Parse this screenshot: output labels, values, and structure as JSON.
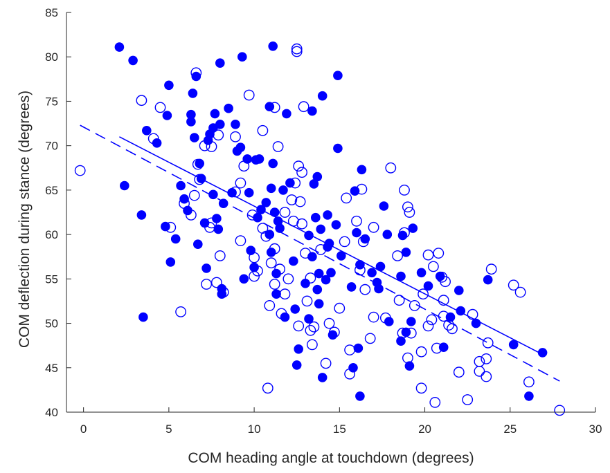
{
  "chart_data": {
    "type": "scatter",
    "title": "",
    "xlabel": "COM heading angle at touchdown (degrees)",
    "ylabel": "COM deflection during stance (degrees)",
    "xlim": [
      -1,
      30
    ],
    "ylim": [
      40,
      85
    ],
    "xticks": [
      0,
      5,
      10,
      15,
      20,
      25,
      30
    ],
    "yticks": [
      40,
      45,
      50,
      55,
      60,
      65,
      70,
      75,
      80,
      85
    ],
    "grid": false,
    "legend": "none",
    "colors": {
      "marker": "#0000ff",
      "axis": "#262626"
    },
    "series": [
      {
        "marker": "filled-circle",
        "points": [
          [
            2.1,
            81.1
          ],
          [
            2.9,
            79.6
          ],
          [
            2.4,
            65.5
          ],
          [
            3.4,
            62.2
          ],
          [
            3.5,
            50.7
          ],
          [
            3.7,
            71.7
          ],
          [
            4.3,
            70.3
          ],
          [
            4.8,
            60.9
          ],
          [
            4.9,
            73.4
          ],
          [
            5.0,
            76.8
          ],
          [
            5.1,
            56.9
          ],
          [
            5.4,
            59.5
          ],
          [
            5.7,
            65.5
          ],
          [
            5.9,
            64.0
          ],
          [
            6.1,
            62.7
          ],
          [
            6.3,
            73.5
          ],
          [
            6.3,
            72.7
          ],
          [
            6.4,
            75.9
          ],
          [
            6.6,
            77.8
          ],
          [
            6.5,
            70.9
          ],
          [
            6.7,
            58.9
          ],
          [
            6.8,
            68.0
          ],
          [
            6.9,
            66.3
          ],
          [
            7.1,
            61.3
          ],
          [
            7.2,
            56.2
          ],
          [
            7.3,
            70.6
          ],
          [
            7.4,
            71.3
          ],
          [
            7.6,
            72.0
          ],
          [
            7.7,
            73.6
          ],
          [
            7.6,
            64.5
          ],
          [
            7.8,
            61.8
          ],
          [
            7.9,
            60.6
          ],
          [
            8.0,
            79.3
          ],
          [
            8.0,
            72.4
          ],
          [
            8.1,
            53.9
          ],
          [
            8.1,
            53.3
          ],
          [
            8.2,
            63.5
          ],
          [
            8.5,
            74.2
          ],
          [
            8.7,
            64.7
          ],
          [
            8.9,
            72.4
          ],
          [
            9.0,
            69.4
          ],
          [
            9.2,
            69.8
          ],
          [
            9.3,
            80.0
          ],
          [
            9.4,
            55.0
          ],
          [
            9.6,
            68.5
          ],
          [
            9.7,
            64.7
          ],
          [
            9.8,
            58.2
          ],
          [
            10.0,
            56.3
          ],
          [
            10.1,
            68.4
          ],
          [
            10.2,
            61.9
          ],
          [
            10.3,
            68.5
          ],
          [
            10.4,
            62.8
          ],
          [
            10.7,
            63.6
          ],
          [
            10.9,
            60.0
          ],
          [
            10.9,
            74.4
          ],
          [
            11.0,
            58.0
          ],
          [
            11.0,
            65.2
          ],
          [
            11.1,
            81.2
          ],
          [
            11.1,
            68.0
          ],
          [
            11.2,
            62.5
          ],
          [
            11.3,
            53.3
          ],
          [
            11.3,
            55.6
          ],
          [
            11.4,
            61.5
          ],
          [
            11.5,
            60.7
          ],
          [
            11.7,
            65.0
          ],
          [
            11.8,
            50.7
          ],
          [
            11.9,
            73.6
          ],
          [
            12.1,
            65.8
          ],
          [
            12.3,
            57.0
          ],
          [
            12.4,
            51.6
          ],
          [
            12.5,
            45.3
          ],
          [
            12.6,
            47.1
          ],
          [
            13.0,
            54.5
          ],
          [
            13.2,
            50.5
          ],
          [
            13.2,
            59.9
          ],
          [
            13.4,
            57.5
          ],
          [
            13.4,
            73.9
          ],
          [
            13.5,
            65.7
          ],
          [
            13.6,
            61.9
          ],
          [
            13.7,
            66.5
          ],
          [
            13.7,
            53.8
          ],
          [
            13.8,
            52.2
          ],
          [
            13.8,
            55.6
          ],
          [
            13.9,
            60.6
          ],
          [
            14.0,
            43.9
          ],
          [
            14.0,
            75.6
          ],
          [
            14.2,
            54.9
          ],
          [
            14.3,
            58.6
          ],
          [
            14.3,
            62.2
          ],
          [
            14.4,
            59.0
          ],
          [
            14.5,
            55.7
          ],
          [
            14.6,
            48.7
          ],
          [
            14.8,
            61.1
          ],
          [
            14.9,
            77.9
          ],
          [
            14.9,
            69.7
          ],
          [
            15.1,
            57.6
          ],
          [
            15.7,
            54.1
          ],
          [
            15.8,
            45.0
          ],
          [
            15.9,
            64.9
          ],
          [
            16.0,
            60.2
          ],
          [
            16.1,
            47.2
          ],
          [
            16.2,
            41.8
          ],
          [
            16.2,
            56.6
          ],
          [
            16.3,
            67.3
          ],
          [
            16.5,
            59.5
          ],
          [
            16.9,
            55.7
          ],
          [
            17.2,
            54.6
          ],
          [
            17.3,
            53.9
          ],
          [
            17.4,
            56.4
          ],
          [
            17.6,
            63.2
          ],
          [
            17.8,
            60.0
          ],
          [
            17.9,
            50.2
          ],
          [
            18.6,
            48.0
          ],
          [
            18.6,
            55.3
          ],
          [
            18.7,
            59.9
          ],
          [
            18.9,
            49.0
          ],
          [
            18.9,
            58.0
          ],
          [
            19.1,
            45.2
          ],
          [
            19.2,
            50.2
          ],
          [
            19.3,
            60.7
          ],
          [
            19.8,
            55.7
          ],
          [
            20.2,
            54.2
          ],
          [
            20.9,
            55.3
          ],
          [
            21.1,
            47.3
          ],
          [
            21.5,
            50.7
          ],
          [
            22.0,
            53.7
          ],
          [
            22.1,
            51.4
          ],
          [
            23.0,
            50.0
          ],
          [
            23.7,
            54.9
          ],
          [
            25.2,
            47.6
          ],
          [
            26.1,
            41.8
          ],
          [
            26.9,
            46.7
          ]
        ]
      },
      {
        "marker": "open-circle",
        "points": [
          [
            -0.2,
            67.2
          ],
          [
            3.4,
            75.1
          ],
          [
            4.1,
            70.8
          ],
          [
            4.5,
            74.3
          ],
          [
            5.1,
            60.8
          ],
          [
            5.9,
            63.5
          ],
          [
            5.7,
            51.3
          ],
          [
            6.3,
            62.2
          ],
          [
            6.5,
            64.4
          ],
          [
            6.6,
            78.2
          ],
          [
            6.7,
            67.9
          ],
          [
            6.8,
            66.2
          ],
          [
            7.1,
            70.0
          ],
          [
            7.2,
            54.4
          ],
          [
            7.4,
            60.8
          ],
          [
            7.5,
            69.9
          ],
          [
            7.5,
            61.3
          ],
          [
            7.8,
            54.6
          ],
          [
            7.9,
            71.2
          ],
          [
            8.0,
            57.6
          ],
          [
            8.2,
            53.5
          ],
          [
            8.9,
            71.0
          ],
          [
            8.9,
            64.8
          ],
          [
            9.2,
            59.3
          ],
          [
            9.2,
            65.8
          ],
          [
            9.4,
            67.7
          ],
          [
            9.7,
            75.7
          ],
          [
            9.9,
            62.2
          ],
          [
            10.0,
            55.3
          ],
          [
            10.0,
            57.4
          ],
          [
            10.2,
            55.9
          ],
          [
            10.5,
            71.7
          ],
          [
            10.5,
            60.7
          ],
          [
            10.7,
            59.8
          ],
          [
            10.8,
            42.7
          ],
          [
            10.9,
            52.0
          ],
          [
            11.0,
            56.8
          ],
          [
            11.2,
            54.4
          ],
          [
            11.2,
            58.4
          ],
          [
            11.2,
            74.3
          ],
          [
            11.4,
            69.9
          ],
          [
            11.5,
            56.1
          ],
          [
            11.6,
            51.1
          ],
          [
            11.8,
            62.5
          ],
          [
            11.8,
            53.3
          ],
          [
            12.0,
            55.0
          ],
          [
            12.2,
            63.9
          ],
          [
            12.3,
            61.5
          ],
          [
            12.4,
            65.8
          ],
          [
            12.5,
            80.6
          ],
          [
            12.5,
            80.9
          ],
          [
            12.6,
            67.7
          ],
          [
            12.7,
            63.7
          ],
          [
            12.6,
            49.7
          ],
          [
            12.8,
            61.2
          ],
          [
            12.8,
            67.0
          ],
          [
            12.9,
            74.4
          ],
          [
            13.0,
            57.9
          ],
          [
            13.1,
            52.5
          ],
          [
            13.3,
            49.2
          ],
          [
            13.3,
            55.1
          ],
          [
            13.4,
            47.6
          ],
          [
            13.5,
            49.6
          ],
          [
            13.9,
            58.3
          ],
          [
            14.2,
            45.5
          ],
          [
            14.4,
            50.0
          ],
          [
            14.7,
            49.0
          ],
          [
            15.0,
            51.7
          ],
          [
            15.3,
            59.2
          ],
          [
            15.4,
            64.1
          ],
          [
            15.6,
            47.0
          ],
          [
            15.6,
            44.3
          ],
          [
            16.0,
            61.5
          ],
          [
            16.2,
            56.0
          ],
          [
            16.3,
            65.1
          ],
          [
            16.4,
            59.2
          ],
          [
            16.5,
            53.8
          ],
          [
            16.8,
            48.3
          ],
          [
            17.0,
            50.7
          ],
          [
            17.0,
            60.8
          ],
          [
            17.7,
            50.6
          ],
          [
            18.0,
            67.5
          ],
          [
            18.4,
            57.6
          ],
          [
            18.5,
            52.6
          ],
          [
            18.7,
            48.9
          ],
          [
            18.8,
            65.0
          ],
          [
            18.8,
            60.2
          ],
          [
            19.0,
            63.1
          ],
          [
            19.1,
            62.5
          ],
          [
            19.0,
            46.1
          ],
          [
            19.2,
            48.9
          ],
          [
            19.4,
            52.0
          ],
          [
            19.8,
            42.7
          ],
          [
            19.8,
            46.8
          ],
          [
            19.9,
            53.3
          ],
          [
            20.2,
            49.7
          ],
          [
            20.2,
            57.7
          ],
          [
            20.4,
            50.4
          ],
          [
            20.5,
            56.4
          ],
          [
            20.6,
            41.1
          ],
          [
            20.7,
            47.2
          ],
          [
            20.8,
            57.9
          ],
          [
            21.0,
            55.2
          ],
          [
            21.1,
            50.8
          ],
          [
            21.1,
            52.6
          ],
          [
            21.2,
            54.7
          ],
          [
            21.4,
            49.8
          ],
          [
            21.6,
            49.4
          ],
          [
            22.0,
            44.5
          ],
          [
            22.5,
            41.4
          ],
          [
            22.8,
            51.0
          ],
          [
            23.2,
            45.7
          ],
          [
            23.2,
            44.6
          ],
          [
            23.6,
            46.0
          ],
          [
            23.6,
            44.0
          ],
          [
            23.7,
            47.8
          ],
          [
            23.9,
            56.1
          ],
          [
            25.2,
            54.3
          ],
          [
            25.6,
            53.5
          ],
          [
            26.1,
            43.4
          ],
          [
            27.9,
            40.2
          ]
        ]
      }
    ],
    "fits": [
      {
        "style": "solid",
        "x": [
          2.1,
          26.9
        ],
        "y": [
          71.0,
          46.5
        ]
      },
      {
        "style": "dashed",
        "x": [
          -0.2,
          27.9
        ],
        "y": [
          72.3,
          43.5
        ]
      }
    ]
  }
}
